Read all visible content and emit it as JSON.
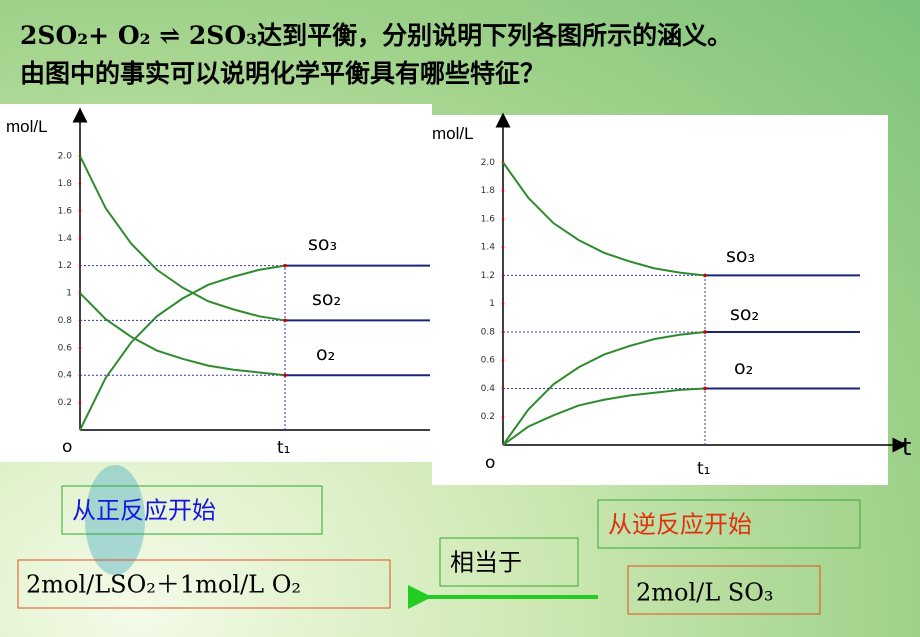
{
  "header": {
    "line1": "2SO₂+ O₂  ⇌ 2SO₃达到平衡，分别说明下列各图所示的涵义。",
    "line2": "由图中的事实可以说明化学平衡具有哪些特征？"
  },
  "chart_data": [
    {
      "type": "line",
      "ylabel": "mol/L",
      "origin_label": "o",
      "categories": [
        "o",
        null,
        null,
        null,
        null,
        null,
        null,
        null,
        "t₁",
        null,
        null,
        null,
        null
      ],
      "ylim": [
        0,
        2.3
      ],
      "yticks": [
        0.2,
        0.4,
        0.6,
        0.8,
        1,
        1.2,
        1.4,
        1.6,
        1.8,
        {
          "value": 2,
          "label": "2.0"
        }
      ],
      "color_before": "#2e8b2e",
      "color_after": "#1a237e",
      "series": [
        {
          "name": "so₃",
          "values": [
            0,
            0.38,
            0.64,
            0.83,
            0.96,
            1.06,
            1.12,
            1.17,
            1.2,
            1.2,
            1.2,
            1.2,
            1.2
          ]
        },
        {
          "name": "so₂",
          "values": [
            2.0,
            1.62,
            1.36,
            1.17,
            1.04,
            0.94,
            0.88,
            0.83,
            0.8,
            0.8,
            0.8,
            0.8,
            0.8
          ]
        },
        {
          "name": "o₂",
          "values": [
            1,
            0.81,
            0.68,
            0.58,
            0.52,
            0.47,
            0.44,
            0.42,
            0.4,
            0.4,
            0.4,
            0.4,
            0.4
          ]
        }
      ]
    },
    {
      "type": "line",
      "ylabel": "mol/L",
      "origin_label": "o",
      "xlabel": "t",
      "categories": [
        "o",
        null,
        null,
        null,
        null,
        null,
        null,
        null,
        "t₁",
        null,
        null,
        null,
        null
      ],
      "ylim": [
        0,
        2.3
      ],
      "yticks": [
        0.2,
        0.4,
        0.6,
        0.8,
        1,
        1.2,
        1.4,
        1.6,
        1.8,
        {
          "value": 2,
          "label": "2.0"
        }
      ],
      "color_before": "#2e8b2e",
      "color_after": "#1a237e",
      "series": [
        {
          "name": "so₃",
          "values": [
            2,
            1.75,
            1.57,
            1.45,
            1.36,
            1.3,
            1.25,
            1.22,
            1.2,
            1.2,
            1.2,
            1.2,
            1.2
          ]
        },
        {
          "name": "so₂",
          "values": [
            0,
            0.25,
            0.43,
            0.55,
            0.64,
            0.7,
            0.75,
            0.78,
            0.8,
            0.8,
            0.8,
            0.8,
            0.8
          ]
        },
        {
          "name": "o₂",
          "values": [
            0,
            0.13,
            0.21,
            0.28,
            0.32,
            0.35,
            0.37,
            0.39,
            0.4,
            0.4,
            0.4,
            0.4,
            0.4
          ]
        }
      ]
    }
  ],
  "notes": {
    "forward": "从正反应开始",
    "reverse": "从逆反应开始",
    "equivalent": "相当于",
    "left_amount": "2mol/LSO₂＋1mol/L  O₂",
    "right_amount": "2mol/L  SO₃"
  }
}
